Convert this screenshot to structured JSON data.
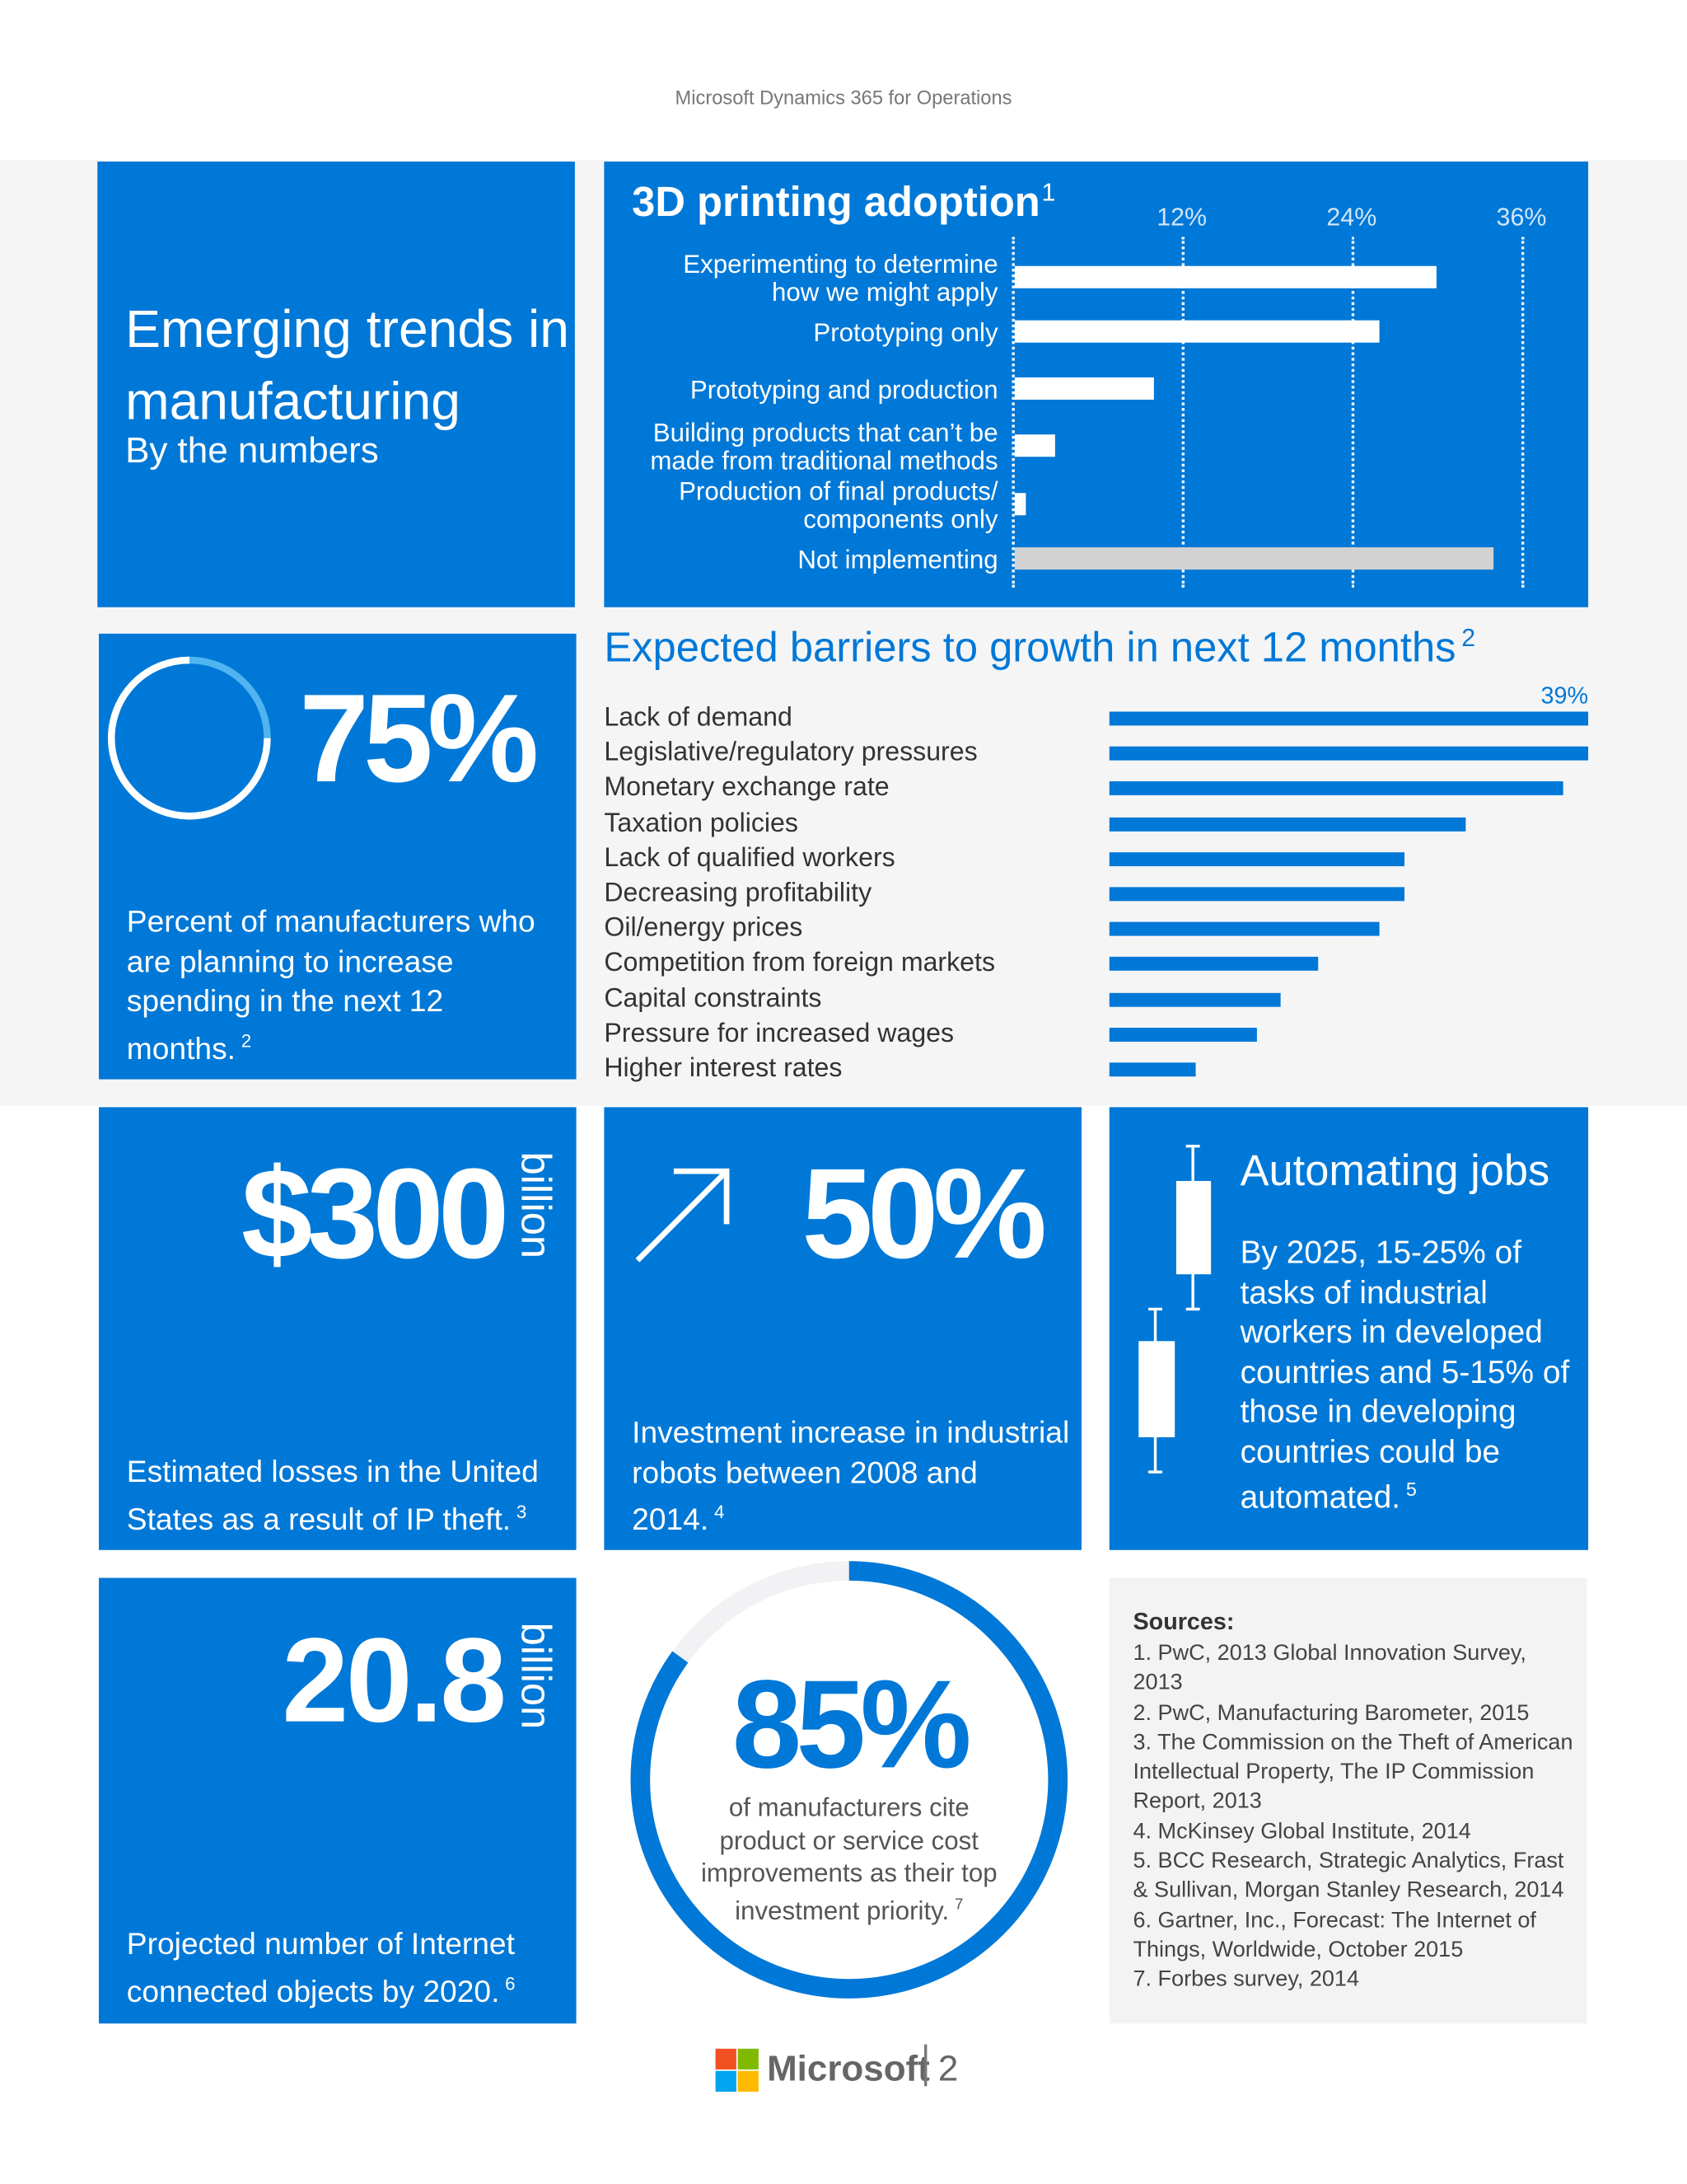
{
  "header": {
    "text": "Microsoft Dynamics 365 for Operations"
  },
  "intro": {
    "title": "Emerging trends in manufacturing",
    "subtitle": "By the numbers"
  },
  "chart_data": [
    {
      "type": "bar",
      "orientation": "horizontal",
      "title": "3D printing adoption",
      "title_note": "1",
      "categories": [
        "Experimenting to determine\nhow we might apply",
        "Prototyping only",
        "Prototyping and production",
        "Building products that can’t be\nmade from traditional methods",
        "Production of final products/\ncomponents only",
        "Not implementing"
      ],
      "values": [
        30,
        26,
        10,
        3,
        1,
        34
      ],
      "colors": [
        "#ffffff",
        "#ffffff",
        "#ffffff",
        "#ffffff",
        "#ffffff",
        "#d2d2d2"
      ],
      "xlim": [
        0,
        40
      ],
      "xticks": [
        {
          "value": 12,
          "label": "12%"
        },
        {
          "value": 24,
          "label": "24%"
        },
        {
          "value": 36,
          "label": "36%"
        }
      ],
      "grid": true
    },
    {
      "type": "bar",
      "orientation": "horizontal",
      "title": "Expected barriers to growth in next 12 months",
      "title_note": "2",
      "categories": [
        "Lack of demand",
        "Legislative/regulatory pressures",
        "Monetary exchange rate",
        "Taxation policies",
        "Lack of qualified workers",
        "Decreasing profitability",
        "Oil/energy prices",
        "Competition from foreign markets",
        "Capital constraints",
        "Pressure for increased wages",
        "Higher interest rates"
      ],
      "values": [
        39,
        39,
        37,
        29,
        24,
        24,
        22,
        17,
        14,
        12,
        7
      ],
      "value_labels": [
        "39%",
        null,
        null,
        null,
        null,
        null,
        null,
        null,
        null,
        null,
        null
      ],
      "color": "#0078d7",
      "xlim": [
        0,
        39
      ]
    }
  ],
  "stats": {
    "spending": {
      "value": 75,
      "label": "75%",
      "text": "Percent of manufacturers who are planning to increase spending in the next 12 months.",
      "note": "2"
    },
    "ip_theft": {
      "figure": "$300",
      "unit": "billion",
      "text": "Estimated losses in the United States as a result of IP theft.",
      "note": "3"
    },
    "robots": {
      "figure": "50%",
      "text": "Investment increase in industrial robots between 2008 and 2014.",
      "note": "4"
    },
    "automation": {
      "title": "Automating jobs",
      "text": "By 2025, 15-25% of tasks of industrial workers in developed countries and 5-15% of those in developing countries could be automated.",
      "note": "5"
    },
    "iot": {
      "figure": "20.8",
      "unit": "billion",
      "text": "Projected number of Internet connected objects by 2020.",
      "note": "6"
    },
    "cost": {
      "value": 85,
      "label": "85%",
      "text": "of manufacturers cite product or service cost improvements as their top investment priority.",
      "note": "7"
    }
  },
  "sources": {
    "title": "Sources:",
    "items": [
      "1. PwC, 2013 Global Innovation Survey, 2013",
      "2. PwC, Manufacturing Barometer, 2015",
      "3. The Commission on the Theft of American Intellectual Property, The IP Commission Report, 2013",
      "4. McKinsey Global Institute, 2014",
      "5. BCC Research, Strategic Analytics, Frast & Sullivan, Morgan Stanley Research, 2014",
      "6. Gartner, Inc., Forecast: The Internet of Things, Worldwide, October 2015",
      "7. Forbes survey, 2014"
    ]
  },
  "footer": {
    "brand": "Microsoft",
    "page": "2"
  }
}
